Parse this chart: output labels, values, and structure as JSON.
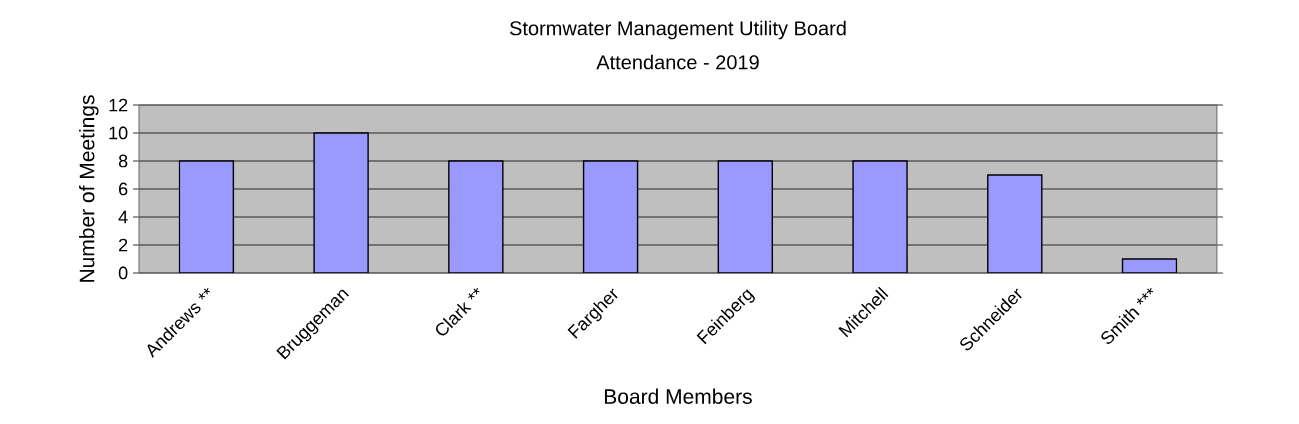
{
  "chart_data": {
    "type": "bar",
    "title": "Stormwater Management Utility Board",
    "subtitle": "Attendance - 2019",
    "xlabel": "Board Members",
    "ylabel": "Number of Meetings",
    "categories": [
      "Andrews **",
      "Bruggeman",
      "Clark **",
      "Fargher",
      "Feinberg",
      "Mitchell",
      "Schneider",
      "Smith ***"
    ],
    "values": [
      8,
      10,
      8,
      8,
      8,
      8,
      7,
      1
    ],
    "color": "#9999ff",
    "ylim": [
      0,
      12
    ],
    "yticks": [
      0,
      2,
      4,
      6,
      8,
      10,
      12
    ],
    "grid": "y"
  }
}
